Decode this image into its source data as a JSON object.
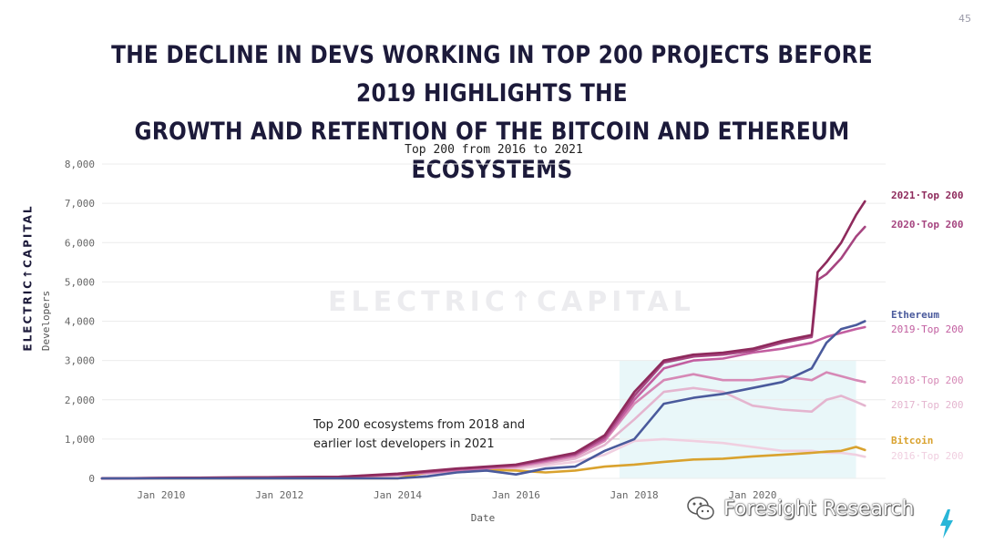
{
  "page_number": "45",
  "headline": {
    "line1": "THE DECLINE IN DEVS WORKING IN TOP 200 PROJECTS BEFORE 2019 HIGHLIGHTS THE",
    "line2": "GROWTH AND RETENTION OF THE BITCOIN AND ETHEREUM ECOSYSTEMS"
  },
  "side_logo": "ELECTRIC↑CAPITAL",
  "chart_watermark": "ELECTRIC↑CAPITAL",
  "source_watermark": "Foresight Research",
  "annotation": {
    "line1": "Top 200  ecosystems from 2018 and",
    "line2": "earlier lost developers in 2021"
  },
  "colors": {
    "top2021": "#8e2a5c",
    "top2020": "#a64580",
    "top2019": "#c25ea0",
    "top2018": "#d689b6",
    "top2017": "#e4b5cf",
    "top2016": "#f0cfe0",
    "ethereum": "#4a5a9c",
    "bitcoin": "#d9a22e",
    "highlight": "#dff4f6",
    "grid": "#ececec"
  },
  "chart_data": {
    "type": "line",
    "title": "Top 200 from 2016 to 2021",
    "xlabel": "Date",
    "ylabel": "Developers",
    "ylim": [
      0,
      8000
    ],
    "xlim": [
      2009.0,
      2022.25
    ],
    "yticks": [
      0,
      1000,
      2000,
      3000,
      4000,
      5000,
      6000,
      7000,
      8000
    ],
    "ytick_labels": [
      "0",
      "1,000",
      "2,000",
      "3,000",
      "4,000",
      "5,000",
      "6,000",
      "7,000",
      "8,000"
    ],
    "xticks": [
      2010,
      2012,
      2014,
      2016,
      2018,
      2020
    ],
    "xtick_labels": [
      "Jan 2010",
      "Jan 2012",
      "Jan 2014",
      "Jan 2016",
      "Jan 2018",
      "Jan 2020"
    ],
    "grid": true,
    "legend": "labels at right end of lines",
    "highlight_region": {
      "x": [
        2017.75,
        2021.75
      ],
      "y": [
        0,
        3000
      ]
    },
    "series": [
      {
        "name": "2021·Top 200",
        "color_key": "top2021",
        "x": [
          2009.0,
          2013.0,
          2014.0,
          2015.0,
          2016.0,
          2016.5,
          2017.0,
          2017.5,
          2018.0,
          2018.5,
          2019.0,
          2019.5,
          2020.0,
          2020.5,
          2021.0,
          2021.1,
          2021.25,
          2021.5,
          2021.75,
          2021.9
        ],
        "y": [
          0,
          40,
          120,
          250,
          350,
          500,
          650,
          1100,
          2200,
          3000,
          3150,
          3200,
          3300,
          3500,
          3650,
          5250,
          5500,
          6000,
          6700,
          7050
        ]
      },
      {
        "name": "2020·Top 200",
        "color_key": "top2020",
        "x": [
          2009.0,
          2013.0,
          2014.0,
          2015.0,
          2016.0,
          2016.5,
          2017.0,
          2017.5,
          2018.0,
          2018.5,
          2019.0,
          2019.5,
          2020.0,
          2020.5,
          2021.0,
          2021.1,
          2021.25,
          2021.5,
          2021.75,
          2021.9
        ],
        "y": [
          0,
          40,
          110,
          240,
          340,
          480,
          620,
          1050,
          2100,
          2950,
          3100,
          3150,
          3250,
          3450,
          3600,
          5050,
          5200,
          5600,
          6150,
          6400
        ]
      },
      {
        "name": "2019·Top 200",
        "color_key": "top2019",
        "x": [
          2009.0,
          2013.0,
          2014.0,
          2015.0,
          2016.0,
          2016.5,
          2017.0,
          2017.5,
          2018.0,
          2018.5,
          2019.0,
          2019.5,
          2020.0,
          2020.5,
          2021.0,
          2021.25,
          2021.5,
          2021.75,
          2021.9
        ],
        "y": [
          0,
          30,
          100,
          220,
          320,
          450,
          600,
          1000,
          2000,
          2800,
          3000,
          3050,
          3200,
          3300,
          3450,
          3600,
          3700,
          3800,
          3850
        ]
      },
      {
        "name": "2018·Top 200",
        "color_key": "top2018",
        "x": [
          2009.0,
          2013.0,
          2014.0,
          2015.0,
          2016.0,
          2016.5,
          2017.0,
          2017.5,
          2018.0,
          2018.5,
          2019.0,
          2019.5,
          2020.0,
          2020.5,
          2021.0,
          2021.25,
          2021.5,
          2021.75,
          2021.9
        ],
        "y": [
          0,
          30,
          90,
          200,
          300,
          420,
          560,
          950,
          1900,
          2500,
          2650,
          2500,
          2500,
          2600,
          2500,
          2700,
          2600,
          2500,
          2450
        ]
      },
      {
        "name": "2017·Top 200",
        "color_key": "top2017",
        "x": [
          2009.0,
          2013.0,
          2014.0,
          2015.0,
          2016.0,
          2016.5,
          2017.0,
          2017.5,
          2018.0,
          2018.5,
          2019.0,
          2019.5,
          2020.0,
          2020.5,
          2021.0,
          2021.25,
          2021.5,
          2021.75,
          2021.9
        ],
        "y": [
          0,
          25,
          80,
          180,
          270,
          380,
          500,
          850,
          1500,
          2200,
          2300,
          2200,
          1850,
          1750,
          1700,
          2000,
          2100,
          1950,
          1850
        ]
      },
      {
        "name": "2016·Top 200",
        "color_key": "top2016",
        "x": [
          2009.0,
          2013.0,
          2014.0,
          2015.0,
          2016.0,
          2016.5,
          2017.0,
          2017.5,
          2018.0,
          2018.5,
          2019.0,
          2019.5,
          2020.0,
          2020.5,
          2021.0,
          2021.25,
          2021.5,
          2021.75,
          2021.9
        ],
        "y": [
          0,
          20,
          70,
          160,
          240,
          330,
          420,
          600,
          950,
          1000,
          950,
          900,
          800,
          700,
          700,
          650,
          650,
          600,
          550
        ]
      },
      {
        "name": "Ethereum",
        "color_key": "ethereum",
        "x": [
          2009.0,
          2014.0,
          2014.5,
          2015.0,
          2015.5,
          2016.0,
          2016.5,
          2017.0,
          2017.5,
          2018.0,
          2018.5,
          2019.0,
          2019.5,
          2020.0,
          2020.5,
          2021.0,
          2021.25,
          2021.5,
          2021.75,
          2021.9
        ],
        "y": [
          0,
          0,
          50,
          150,
          200,
          100,
          250,
          300,
          700,
          1000,
          1900,
          2050,
          2150,
          2300,
          2450,
          2800,
          3450,
          3800,
          3900,
          4000
        ]
      },
      {
        "name": "Bitcoin",
        "color_key": "bitcoin",
        "x": [
          2009.0,
          2014.0,
          2014.5,
          2015.0,
          2015.5,
          2016.0,
          2016.5,
          2017.0,
          2017.5,
          2018.0,
          2018.5,
          2019.0,
          2019.5,
          2020.0,
          2020.5,
          2021.0,
          2021.25,
          2021.5,
          2021.75,
          2021.9
        ],
        "y": [
          0,
          0,
          150,
          200,
          220,
          200,
          150,
          200,
          300,
          350,
          420,
          480,
          500,
          560,
          600,
          650,
          680,
          700,
          800,
          720
        ]
      }
    ]
  }
}
